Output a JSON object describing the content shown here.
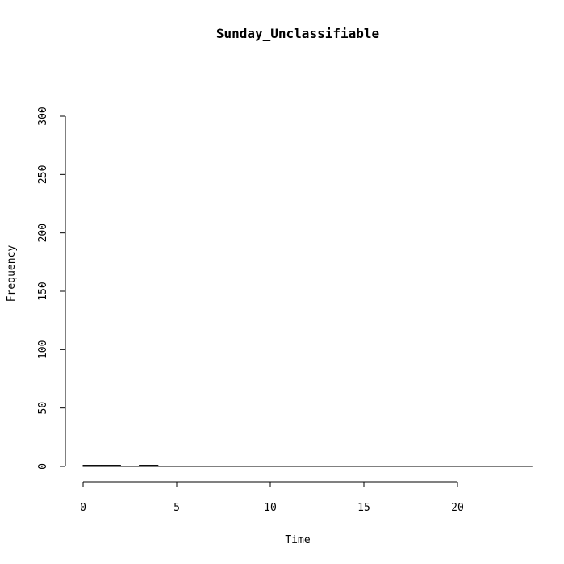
{
  "chart_data": {
    "type": "bar",
    "title": "Sunday_Unclassifiable",
    "xlabel": "Time",
    "ylabel": "Frequency",
    "xlim": [
      -0.5,
      24
    ],
    "ylim": [
      0,
      300
    ],
    "x_ticks": [
      0,
      5,
      10,
      15,
      20
    ],
    "y_ticks": [
      0,
      50,
      100,
      150,
      200,
      250,
      300
    ],
    "bar_color": "#90EE90",
    "bins": [
      {
        "x0": 0,
        "x1": 1,
        "value": 1
      },
      {
        "x0": 1,
        "x1": 2,
        "value": 1
      },
      {
        "x0": 2,
        "x1": 3,
        "value": 0
      },
      {
        "x0": 3,
        "x1": 4,
        "value": 1
      },
      {
        "x0": 4,
        "x1": 5,
        "value": 0
      },
      {
        "x0": 5,
        "x1": 6,
        "value": 0
      },
      {
        "x0": 6,
        "x1": 7,
        "value": 0
      },
      {
        "x0": 7,
        "x1": 8,
        "value": 0
      },
      {
        "x0": 8,
        "x1": 9,
        "value": 0
      },
      {
        "x0": 9,
        "x1": 10,
        "value": 0
      },
      {
        "x0": 10,
        "x1": 11,
        "value": 0
      },
      {
        "x0": 11,
        "x1": 12,
        "value": 0
      },
      {
        "x0": 12,
        "x1": 13,
        "value": 0
      },
      {
        "x0": 13,
        "x1": 14,
        "value": 0
      },
      {
        "x0": 14,
        "x1": 15,
        "value": 0
      },
      {
        "x0": 15,
        "x1": 16,
        "value": 0
      },
      {
        "x0": 16,
        "x1": 17,
        "value": 0
      },
      {
        "x0": 17,
        "x1": 18,
        "value": 0
      },
      {
        "x0": 18,
        "x1": 19,
        "value": 0
      },
      {
        "x0": 19,
        "x1": 20,
        "value": 0
      },
      {
        "x0": 20,
        "x1": 21,
        "value": 0
      },
      {
        "x0": 21,
        "x1": 22,
        "value": 0
      },
      {
        "x0": 22,
        "x1": 23,
        "value": 0
      },
      {
        "x0": 23,
        "x1": 24,
        "value": 0
      }
    ]
  }
}
